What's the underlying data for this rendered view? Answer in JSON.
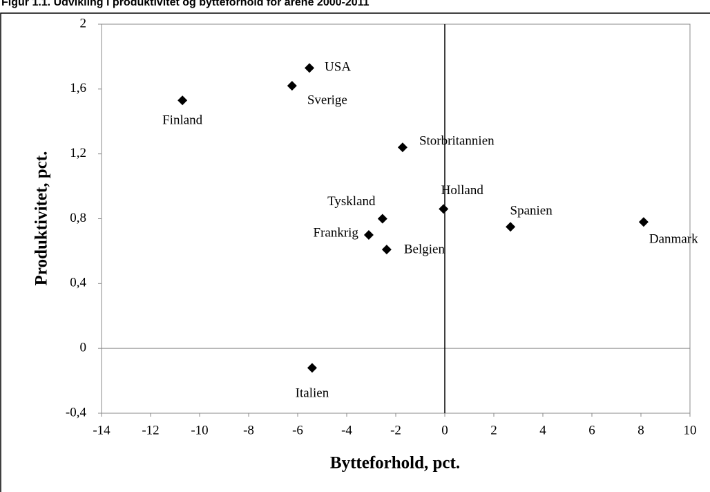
{
  "chart_data": {
    "type": "scatter",
    "title": "Figur 1.1. Udvikling i produktivitet og bytteforhold for årene 2000-2011",
    "x_label": "Bytteforhold, pct.",
    "y_label": "Produktivitet, pct.",
    "labels": [
      "Finland",
      "USA",
      "Sverige",
      "Storbritannien",
      "Holland",
      "Tyskland",
      "Frankrig",
      "Belgien",
      "Spanien",
      "Danmark",
      "Italien"
    ],
    "x": [
      -10.7,
      -5.52,
      -6.23,
      -1.72,
      -0.05,
      -2.54,
      -3.1,
      -2.37,
      2.68,
      8.11,
      -5.41
    ],
    "y": [
      1.53,
      1.73,
      1.62,
      1.24,
      0.86,
      0.8,
      0.7,
      0.61,
      0.75,
      0.78,
      -0.12
    ],
    "color": "#000000",
    "xlim": [
      -14,
      10
    ],
    "xticks": [
      -14,
      -12,
      -10,
      -8,
      -6,
      -4,
      -2,
      0,
      2,
      4,
      6,
      8,
      10
    ],
    "ylim": [
      -0.4,
      2
    ],
    "yticks": [
      {
        "value": -0.4,
        "label": "-0,4"
      },
      0,
      {
        "value": 0.4,
        "label": "0,4"
      },
      {
        "value": 0.8,
        "label": "0,8"
      },
      {
        "value": 1.2,
        "label": "1,2"
      },
      {
        "value": 1.6,
        "label": "1,6"
      },
      2
    ]
  }
}
